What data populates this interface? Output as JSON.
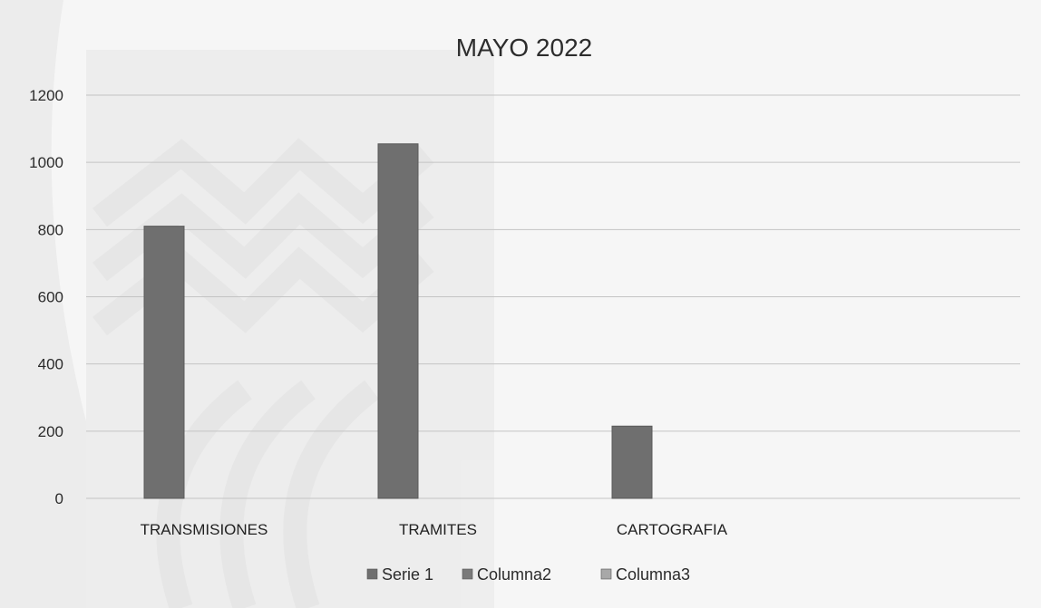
{
  "chart_data": {
    "type": "bar",
    "title": "MAYO 2022",
    "categories": [
      "TRANSMISIONES",
      "TRAMITES",
      "CARTOGRAFIA"
    ],
    "series": [
      {
        "name": "Serie 1",
        "values": [
          810,
          1055,
          215
        ],
        "color": "#6f6f6f"
      },
      {
        "name": "Columna2",
        "values": [
          null,
          null,
          null
        ],
        "color": "#7a7a7a"
      },
      {
        "name": "Columna3",
        "values": [
          null,
          null,
          null
        ],
        "color": "#a8a8a8"
      }
    ],
    "yticks": [
      0,
      200,
      400,
      600,
      800,
      1000,
      1200
    ],
    "ylim": [
      0,
      1200
    ],
    "grid": true,
    "legend_position": "bottom"
  }
}
